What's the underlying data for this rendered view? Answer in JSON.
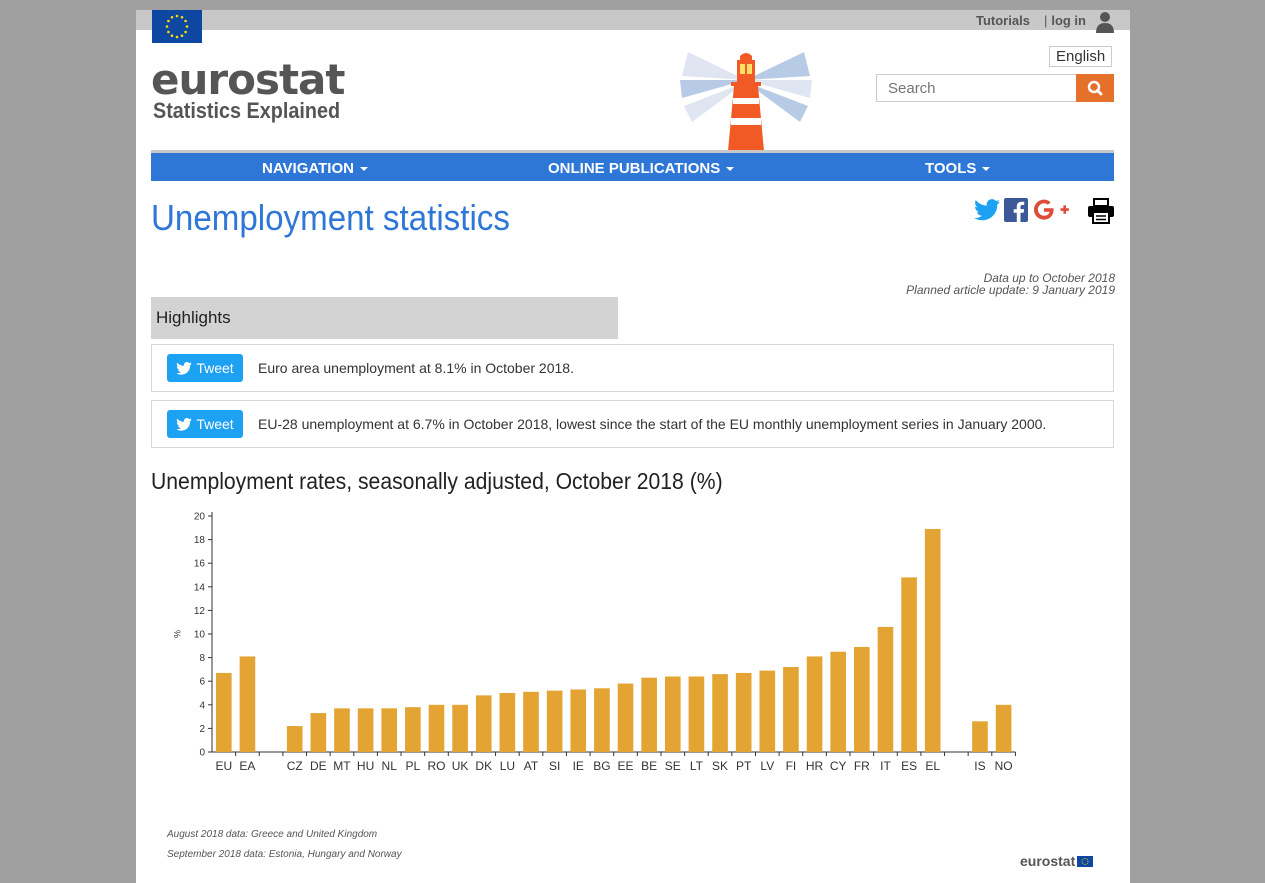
{
  "topbar": {
    "tutorials": "Tutorials",
    "separator": "|",
    "login": "log in"
  },
  "logo": {
    "main": "eurostat",
    "sub": "Statistics Explained"
  },
  "language": "English",
  "search": {
    "placeholder": "Search"
  },
  "nav": {
    "items": [
      {
        "label": "NAVIGATION"
      },
      {
        "label": "ONLINE PUBLICATIONS"
      },
      {
        "label": "TOOLS"
      }
    ]
  },
  "page": {
    "title": "Unemployment statistics"
  },
  "meta": {
    "data_up_to": "Data up to October 2018",
    "planned_update": "Planned article update: 9 January 2019"
  },
  "highlights": {
    "title": "Highlights",
    "tweet_label": "Tweet",
    "items": [
      {
        "text": "Euro area unemployment at 8.1% in October 2018."
      },
      {
        "text": "EU-28 unemployment at 6.7% in October 2018, lowest since the start of the EU monthly unemployment series in January 2000."
      }
    ]
  },
  "chart_data": {
    "type": "bar",
    "title": "Unemployment rates, seasonally adjusted, October 2018 (%)",
    "ylabel": "%",
    "xlabel": "",
    "ylim": [
      0,
      20
    ],
    "yticks": [
      0,
      2,
      4,
      6,
      8,
      10,
      12,
      14,
      16,
      18,
      20
    ],
    "color": "#e3a433",
    "categories": [
      "EU",
      "EA",
      "",
      "CZ",
      "DE",
      "MT",
      "HU",
      "NL",
      "PL",
      "RO",
      "UK",
      "DK",
      "LU",
      "AT",
      "SI",
      "IE",
      "BG",
      "EE",
      "BE",
      "SE",
      "LT",
      "SK",
      "PT",
      "LV",
      "FI",
      "HR",
      "CY",
      "FR",
      "IT",
      "ES",
      "EL",
      "",
      "IS",
      "NO"
    ],
    "values": [
      6.7,
      8.1,
      null,
      2.2,
      3.3,
      3.7,
      3.7,
      3.7,
      3.8,
      4.0,
      4.0,
      4.8,
      5.0,
      5.1,
      5.2,
      5.3,
      5.4,
      5.8,
      6.3,
      6.4,
      6.4,
      6.6,
      6.7,
      6.9,
      7.2,
      8.1,
      8.5,
      8.9,
      10.6,
      14.8,
      18.9,
      null,
      2.6,
      4.0
    ],
    "legend": "none",
    "grid": false
  },
  "footnotes": {
    "line1": "August 2018 data: Greece and United Kingdom",
    "line2": "September 2018 data: Estonia, Hungary and Norway"
  },
  "brand_small": "eurostat"
}
